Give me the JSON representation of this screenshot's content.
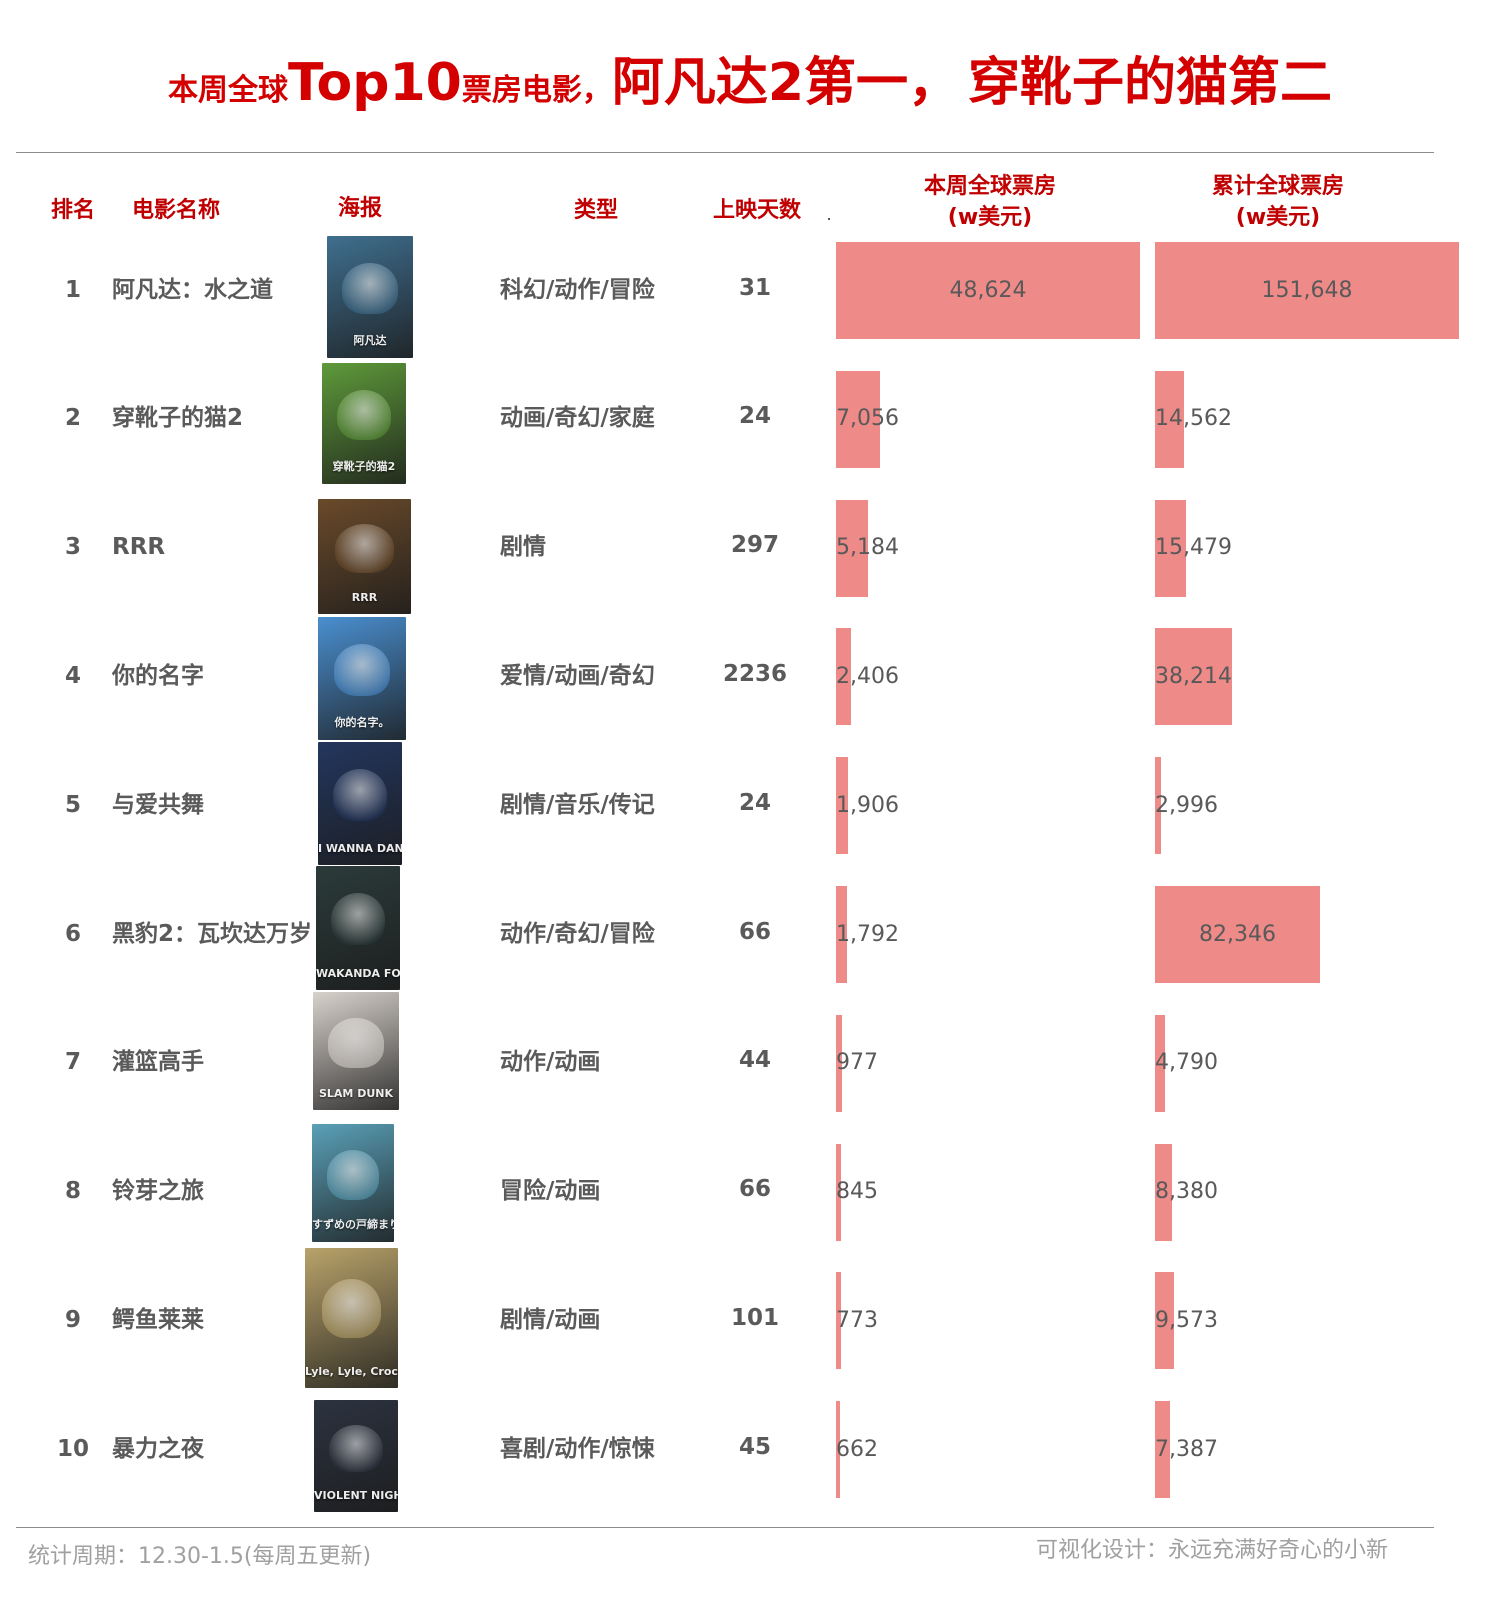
{
  "title": {
    "small1": "本周全球",
    "big1": "Top10",
    "small2": "票房电影，",
    "big2": "阿凡达2第一，",
    "big3": "穿靴子的猫第二"
  },
  "headers": {
    "rank": "排名",
    "name": "电影名称",
    "poster": "海报",
    "genre": "类型",
    "days": "上映天数",
    "weekly": [
      "本周全球票房",
      "(w美元)"
    ],
    "total": [
      "累计全球票房",
      "(w美元)"
    ]
  },
  "chart_data": {
    "type": "table",
    "columns": [
      "排名",
      "电影名称",
      "海报",
      "类型",
      "上映天数",
      "本周全球票房 (w美元)",
      "累计全球票房 (w美元)"
    ],
    "rows": [
      {
        "rank": "1",
        "name": "阿凡达：水之道",
        "genre": "科幻/动作/冒险",
        "days": "31",
        "weekly": 48624,
        "weekly_label": "48,624",
        "total": 151648,
        "total_label": "151,648",
        "poster_color": "#3f6f8f",
        "poster_icon": "avatar-poster"
      },
      {
        "rank": "2",
        "name": "穿靴子的猫2",
        "genre": "动画/奇幻/家庭",
        "days": "24",
        "weekly": 7056,
        "weekly_label": "7,056",
        "total": 14562,
        "total_label": "14,562",
        "poster_color": "#5e9a3a",
        "poster_icon": "puss-in-boots-poster"
      },
      {
        "rank": "3",
        "name": "RRR",
        "genre": "剧情",
        "days": "297",
        "weekly": 5184,
        "weekly_label": "5,184",
        "total": 15479,
        "total_label": "15,479",
        "poster_color": "#6a4a2a",
        "poster_icon": "rrr-poster"
      },
      {
        "rank": "4",
        "name": "你的名字",
        "genre": "爱情/动画/奇幻",
        "days": "2236",
        "weekly": 2406,
        "weekly_label": "2,406",
        "total": 38214,
        "total_label": "38,214",
        "poster_color": "#4a8fd0",
        "poster_icon": "your-name-poster"
      },
      {
        "rank": "5",
        "name": "与爱共舞",
        "genre": "剧情/音乐/传记",
        "days": "24",
        "weekly": 1906,
        "weekly_label": "1,906",
        "total": 2996,
        "total_label": "2,996",
        "poster_color": "#23365e",
        "poster_icon": "dance-poster"
      },
      {
        "rank": "6",
        "name": "黑豹2：瓦坎达万岁",
        "genre": "动作/奇幻/冒险",
        "days": "66",
        "weekly": 1792,
        "weekly_label": "1,792",
        "total": 82346,
        "total_label": "82,346",
        "poster_color": "#2b3b3a",
        "poster_icon": "black-panther-poster"
      },
      {
        "rank": "7",
        "name": "灌篮高手",
        "genre": "动作/动画",
        "days": "44",
        "weekly": 977,
        "weekly_label": "977",
        "total": 4790,
        "total_label": "4,790",
        "poster_color": "#d8d2cc",
        "poster_icon": "slam-dunk-poster"
      },
      {
        "rank": "8",
        "name": "铃芽之旅",
        "genre": "冒险/动画",
        "days": "66",
        "weekly": 845,
        "weekly_label": "845",
        "total": 8380,
        "total_label": "8,380",
        "poster_color": "#5aa0b8",
        "poster_icon": "suzume-poster"
      },
      {
        "rank": "9",
        "name": "鳄鱼莱莱",
        "genre": "剧情/动画",
        "days": "101",
        "weekly": 773,
        "weekly_label": "773",
        "total": 9573,
        "total_label": "9,573",
        "poster_color": "#b9a36a",
        "poster_icon": "crocodile-poster"
      },
      {
        "rank": "10",
        "name": "暴力之夜",
        "genre": "喜剧/动作/惊悚",
        "days": "45",
        "weekly": 662,
        "weekly_label": "662",
        "total": 7387,
        "total_label": "7,387",
        "poster_color": "#2c3340",
        "poster_icon": "violent-night-poster"
      }
    ],
    "weekly_max": 48624,
    "total_max": 151648,
    "bar_color": "#ee8a88"
  },
  "posters": {
    "1": "阿凡达",
    "2": "穿靴子的猫2",
    "3": "RRR",
    "4": "你的名字。",
    "5": "I WANNA DANCE",
    "6": "WAKANDA FOREVER",
    "7": "SLAM DUNK",
    "8": "すずめの戸締まり",
    "9": "Lyle, Lyle, Crocodile",
    "10": "VIOLENT NIGHT"
  },
  "footer": {
    "left": "统计周期：12.30-1.5(每周五更新)",
    "right": "可视化设计：永远充满好奇心的小新"
  },
  "colors": {
    "title": "#d40000",
    "header": "#c00000",
    "text": "#5a5a5a",
    "bar": "#ee8a88"
  }
}
